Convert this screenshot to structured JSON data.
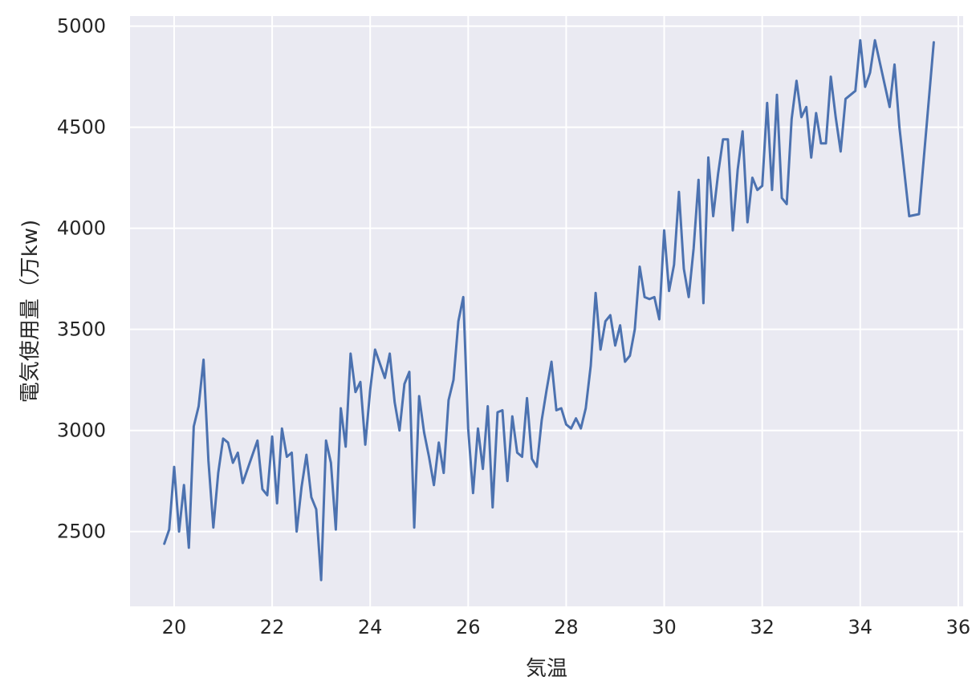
{
  "chart_data": {
    "type": "line",
    "title": "",
    "xlabel": "気温",
    "ylabel": "電気使用量（万kw)",
    "xlim": [
      19.1,
      36.1
    ],
    "ylim": [
      2130,
      5050
    ],
    "xticks": [
      20,
      22,
      24,
      26,
      28,
      30,
      32,
      34,
      36
    ],
    "yticks": [
      2500,
      3000,
      3500,
      4000,
      4500,
      5000
    ],
    "xtick_labels": [
      "20",
      "22",
      "24",
      "26",
      "28",
      "30",
      "32",
      "34",
      "36"
    ],
    "ytick_labels": [
      "2500",
      "3000",
      "3500",
      "4000",
      "4500",
      "5000"
    ],
    "grid": true,
    "colors": {
      "background": "#eaeaf2",
      "grid": "#ffffff",
      "line": "#4c72b0",
      "text": "#262626"
    },
    "series": [
      {
        "x": [
          19.8,
          19.9,
          20.0,
          20.1,
          20.2,
          20.3,
          20.4,
          20.5,
          20.6,
          20.7,
          20.8,
          20.9,
          21.0,
          21.1,
          21.2,
          21.3,
          21.4,
          21.5,
          21.6,
          21.7,
          21.8,
          21.9,
          22.0,
          22.1,
          22.2,
          22.3,
          22.4,
          22.5,
          22.6,
          22.7,
          22.8,
          22.9,
          23.0,
          23.1,
          23.2,
          23.3,
          23.4,
          23.5,
          23.6,
          23.7,
          23.8,
          23.9,
          24.0,
          24.1,
          24.2,
          24.3,
          24.4,
          24.5,
          24.6,
          24.7,
          24.8,
          24.9,
          25.0,
          25.1,
          25.2,
          25.3,
          25.4,
          25.5,
          25.6,
          25.7,
          25.8,
          25.9,
          26.0,
          26.1,
          26.2,
          26.3,
          26.4,
          26.5,
          26.6,
          26.7,
          26.8,
          26.9,
          27.0,
          27.1,
          27.2,
          27.3,
          27.4,
          27.5,
          27.6,
          27.7,
          27.8,
          27.9,
          28.0,
          28.1,
          28.2,
          28.3,
          28.4,
          28.5,
          28.6,
          28.7,
          28.8,
          28.9,
          29.0,
          29.1,
          29.2,
          29.3,
          29.4,
          29.5,
          29.6,
          29.7,
          29.8,
          29.9,
          30.0,
          30.1,
          30.2,
          30.3,
          30.4,
          30.5,
          30.6,
          30.7,
          30.8,
          30.9,
          31.0,
          31.1,
          31.2,
          31.3,
          31.4,
          31.5,
          31.6,
          31.7,
          31.8,
          31.9,
          32.0,
          32.1,
          32.2,
          32.3,
          32.4,
          32.5,
          32.6,
          32.7,
          32.8,
          32.9,
          33.0,
          33.1,
          33.2,
          33.3,
          33.4,
          33.5,
          33.6,
          33.7,
          33.9,
          34.0,
          34.1,
          34.2,
          34.3,
          34.6,
          34.7,
          34.8,
          35.0,
          35.2,
          35.5
        ],
        "values": [
          2440,
          2510,
          2820,
          2500,
          2730,
          2420,
          3020,
          3120,
          3350,
          2850,
          2520,
          2790,
          2960,
          2940,
          2840,
          2890,
          2740,
          2810,
          2880,
          2950,
          2710,
          2680,
          2970,
          2640,
          3010,
          2870,
          2890,
          2500,
          2720,
          2880,
          2670,
          2610,
          2260,
          2950,
          2840,
          2510,
          3110,
          2920,
          3380,
          3190,
          3240,
          2930,
          3200,
          3400,
          3330,
          3260,
          3380,
          3140,
          3000,
          3230,
          3290,
          2520,
          3170,
          2990,
          2870,
          2730,
          2940,
          2790,
          3150,
          3250,
          3540,
          3660,
          3010,
          2690,
          3010,
          2810,
          3120,
          2620,
          3090,
          3100,
          2750,
          3070,
          2890,
          2870,
          3160,
          2860,
          2820,
          3050,
          3200,
          3340,
          3100,
          3110,
          3030,
          3010,
          3060,
          3010,
          3110,
          3320,
          3680,
          3400,
          3540,
          3570,
          3420,
          3520,
          3340,
          3370,
          3500,
          3810,
          3660,
          3650,
          3660,
          3550,
          3990,
          3690,
          3820,
          4180,
          3800,
          3660,
          3900,
          4240,
          3630,
          4350,
          4060,
          4270,
          4440,
          4440,
          3990,
          4290,
          4480,
          4030,
          4250,
          4190,
          4210,
          4620,
          4190,
          4660,
          4150,
          4120,
          4540,
          4730,
          4550,
          4600,
          4350,
          4570,
          4420,
          4420,
          4750,
          4550,
          4380,
          4640,
          4680,
          4930,
          4700,
          4770,
          4930,
          4600,
          4810,
          4500,
          4060,
          4070,
          4920
        ]
      }
    ]
  }
}
